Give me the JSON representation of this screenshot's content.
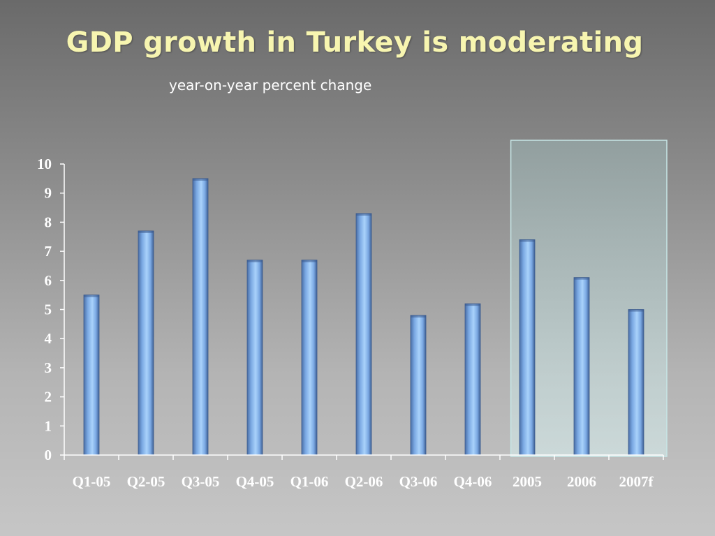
{
  "slide": {
    "title": "GDP growth in Turkey is moderating",
    "subtitle": "year-on-year percent change"
  },
  "colors": {
    "title": "#f7f5b0",
    "bar": "#8fbff0",
    "highlight_box": "#c7e6e6",
    "axis": "#ffffff"
  },
  "chart_data": {
    "type": "bar",
    "title": "GDP growth in Turkey is moderating",
    "subtitle": "year-on-year percent change",
    "xlabel": "",
    "ylabel": "",
    "categories": [
      "Q1-05",
      "Q2-05",
      "Q3-05",
      "Q4-05",
      "Q1-06",
      "Q2-06",
      "Q3-06",
      "Q4-06",
      "2005",
      "2006",
      "2007f"
    ],
    "values": [
      5.5,
      7.7,
      9.5,
      6.7,
      6.7,
      8.3,
      4.8,
      5.2,
      7.4,
      6.1,
      5.0
    ],
    "ylim": [
      0,
      10
    ],
    "yticks": [
      0,
      1,
      2,
      3,
      4,
      5,
      6,
      7,
      8,
      9,
      10
    ],
    "grid": false,
    "legend": "none",
    "highlight": {
      "categories": [
        "2005",
        "2006",
        "2007f"
      ],
      "description": "annual"
    }
  }
}
